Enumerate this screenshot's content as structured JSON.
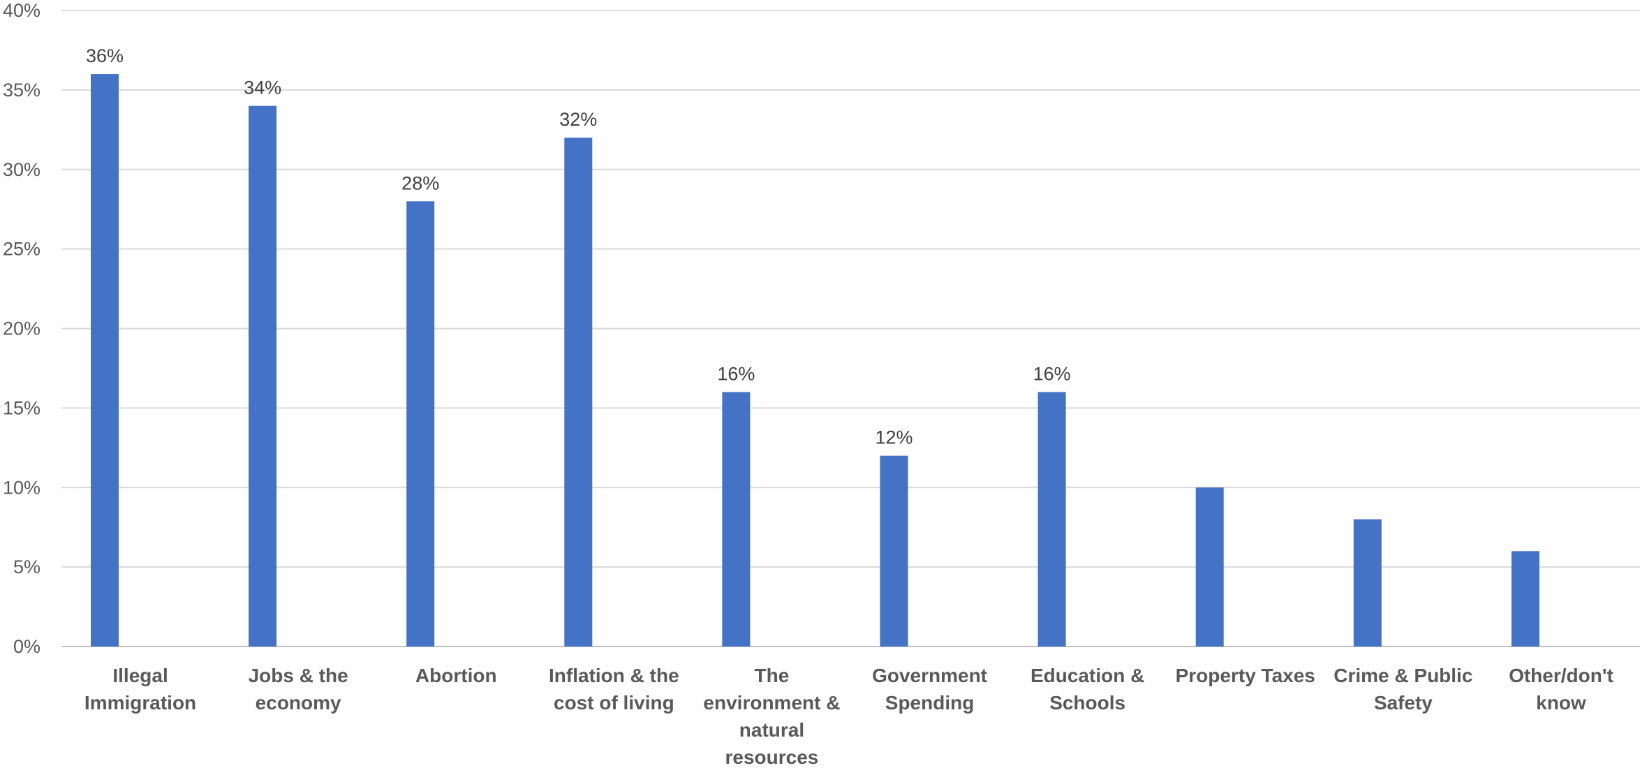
{
  "chart_data": {
    "type": "bar",
    "categories": [
      [
        "Illegal",
        "Immigration"
      ],
      [
        "Jobs & the",
        "economy"
      ],
      [
        "Abortion"
      ],
      [
        "Inflation & the",
        "cost of living"
      ],
      [
        "The",
        "environment &",
        "natural",
        "resources"
      ],
      [
        "Government",
        "Spending"
      ],
      [
        "Education &",
        "Schools"
      ],
      [
        "Property Taxes"
      ],
      [
        "Crime & Public",
        "Safety"
      ],
      [
        "Other/don't",
        "know"
      ]
    ],
    "values": [
      36,
      34,
      28,
      32,
      16,
      12,
      16,
      10,
      8,
      6
    ],
    "data_labels": [
      "36%",
      "34%",
      "28%",
      "32%",
      "16%",
      "12%",
      "16%",
      null,
      null,
      null
    ],
    "y_ticks": [
      "0%",
      "5%",
      "10%",
      "15%",
      "20%",
      "25%",
      "30%",
      "35%",
      "40%"
    ],
    "ylim": [
      0,
      40
    ],
    "bar_color": "#4472C4",
    "grid": true
  }
}
